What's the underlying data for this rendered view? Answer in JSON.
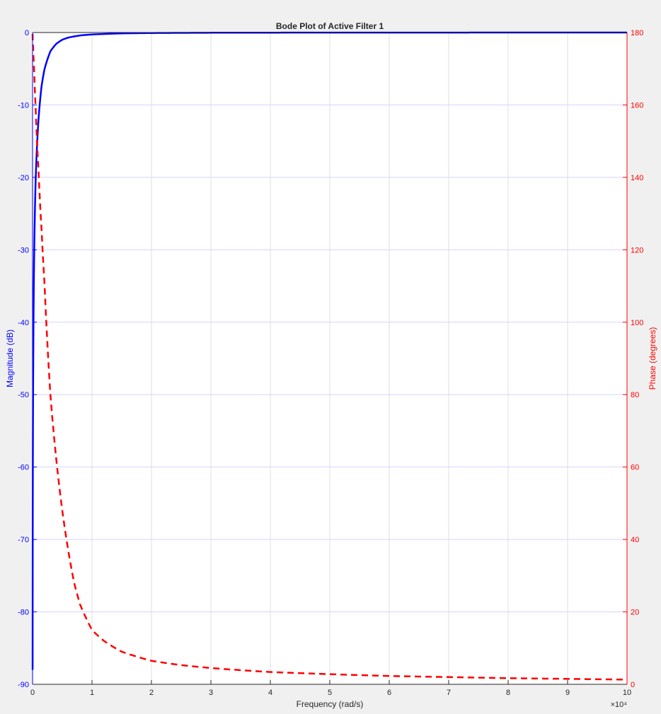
{
  "chart_data": {
    "type": "line",
    "title": "Bode Plot of Active Filter 1",
    "xlabel": "Frequency (rad/s)",
    "x_exponent_label": "×10⁴",
    "x_scale": 10000,
    "xlim": [
      0,
      100000
    ],
    "x_ticks": [
      0,
      1,
      2,
      3,
      4,
      5,
      6,
      7,
      8,
      9,
      10
    ],
    "y_left": {
      "label": "Magnitude (dB)",
      "lim": [
        -90,
        0
      ],
      "ticks": [
        0,
        -10,
        -20,
        -30,
        -40,
        -50,
        -60,
        -70,
        -80,
        -90
      ],
      "color": "#0000ff"
    },
    "y_right": {
      "label": "Phase (degrees)",
      "lim": [
        0,
        180
      ],
      "ticks": [
        180,
        160,
        140,
        120,
        100,
        80,
        60,
        40,
        20,
        0
      ],
      "color": "#ff0000"
    },
    "grid": true,
    "series": [
      {
        "name": "Magnitude (dB)",
        "axis": "left",
        "color": "#0000ff",
        "style": "solid",
        "x": [
          10,
          50,
          100,
          200,
          300,
          500,
          700,
          1000,
          1500,
          2000,
          3000,
          4000,
          5000,
          6000,
          8000,
          10000,
          15000,
          20000,
          30000,
          40000,
          50000,
          60000,
          70000,
          80000,
          90000,
          100000
        ],
        "y": [
          -88,
          -60,
          -48,
          -36,
          -29,
          -21,
          -16.5,
          -12,
          -7.5,
          -5.1,
          -2.6,
          -1.55,
          -1.0,
          -0.7,
          -0.4,
          -0.27,
          -0.12,
          -0.07,
          -0.03,
          -0.02,
          -0.01,
          -0.01,
          -0.01,
          0,
          0,
          0
        ]
      },
      {
        "name": "Phase (degrees)",
        "axis": "right",
        "color": "#ff0000",
        "style": "dashed",
        "x": [
          10,
          100,
          200,
          300,
          500,
          700,
          1000,
          1500,
          2000,
          2500,
          3000,
          4000,
          5000,
          6000,
          7000,
          8000,
          10000,
          12000,
          15000,
          20000,
          25000,
          30000,
          40000,
          50000,
          60000,
          70000,
          80000,
          90000,
          100000
        ],
        "y": [
          179.6,
          176,
          172,
          168,
          160,
          152,
          142,
          126,
          111,
          94,
          80,
          62,
          48,
          37,
          28,
          22,
          15,
          12,
          9,
          6.5,
          5.3,
          4.5,
          3.4,
          2.8,
          2.3,
          2.0,
          1.7,
          1.5,
          1.3
        ]
      }
    ]
  }
}
